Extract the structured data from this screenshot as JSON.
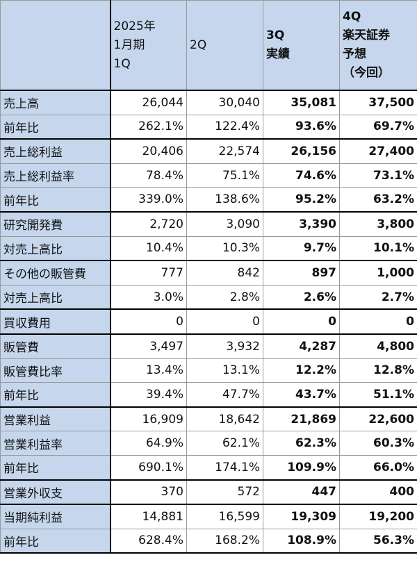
{
  "header": {
    "columns": [
      {
        "lines": [
          "2025年",
          "1月期",
          "1Q"
        ]
      },
      {
        "lines": [
          "2Q"
        ]
      },
      {
        "lines": [
          "3Q",
          "実績"
        ]
      },
      {
        "lines": [
          "4Q",
          "楽天証券",
          "予想",
          "（今回）"
        ]
      }
    ]
  },
  "groups": [
    {
      "rows": [
        [
          "売上高",
          "26,044",
          "30,040",
          "35,081",
          "37,500"
        ],
        [
          "前年比",
          "262.1%",
          "122.4%",
          "93.6%",
          "69.7%"
        ]
      ]
    },
    {
      "rows": [
        [
          "売上総利益",
          "20,406",
          "22,574",
          "26,156",
          "27,400"
        ],
        [
          "売上総利益率",
          "78.4%",
          "75.1%",
          "74.6%",
          "73.1%"
        ],
        [
          "前年比",
          "339.0%",
          "138.6%",
          "95.2%",
          "63.2%"
        ]
      ]
    },
    {
      "rows": [
        [
          "研究開発費",
          "2,720",
          "3,090",
          "3,390",
          "3,800"
        ],
        [
          "対売上高比",
          "10.4%",
          "10.3%",
          "9.7%",
          "10.1%"
        ]
      ]
    },
    {
      "rows": [
        [
          "その他の販管費",
          "777",
          "842",
          "897",
          "1,000"
        ],
        [
          "対売上高比",
          "3.0%",
          "2.8%",
          "2.6%",
          "2.7%"
        ]
      ]
    },
    {
      "rows": [
        [
          "買収費用",
          "0",
          "0",
          "0",
          "0"
        ]
      ]
    },
    {
      "rows": [
        [
          "販管費",
          "3,497",
          "3,932",
          "4,287",
          "4,800"
        ],
        [
          "販管費比率",
          "13.4%",
          "13.1%",
          "12.2%",
          "12.8%"
        ],
        [
          "前年比",
          "39.4%",
          "47.7%",
          "43.7%",
          "51.1%"
        ]
      ]
    },
    {
      "rows": [
        [
          "営業利益",
          "16,909",
          "18,642",
          "21,869",
          "22,600"
        ],
        [
          "営業利益率",
          "64.9%",
          "62.1%",
          "62.3%",
          "60.3%"
        ],
        [
          "前年比",
          "690.1%",
          "174.1%",
          "109.9%",
          "66.0%"
        ]
      ]
    },
    {
      "rows": [
        [
          "営業外収支",
          "370",
          "572",
          "447",
          "400"
        ]
      ]
    },
    {
      "rows": [
        [
          "当期純利益",
          "14,881",
          "16,599",
          "19,309",
          "19,200"
        ],
        [
          "前年比",
          "628.4%",
          "168.2%",
          "108.9%",
          "56.3%"
        ]
      ]
    }
  ]
}
